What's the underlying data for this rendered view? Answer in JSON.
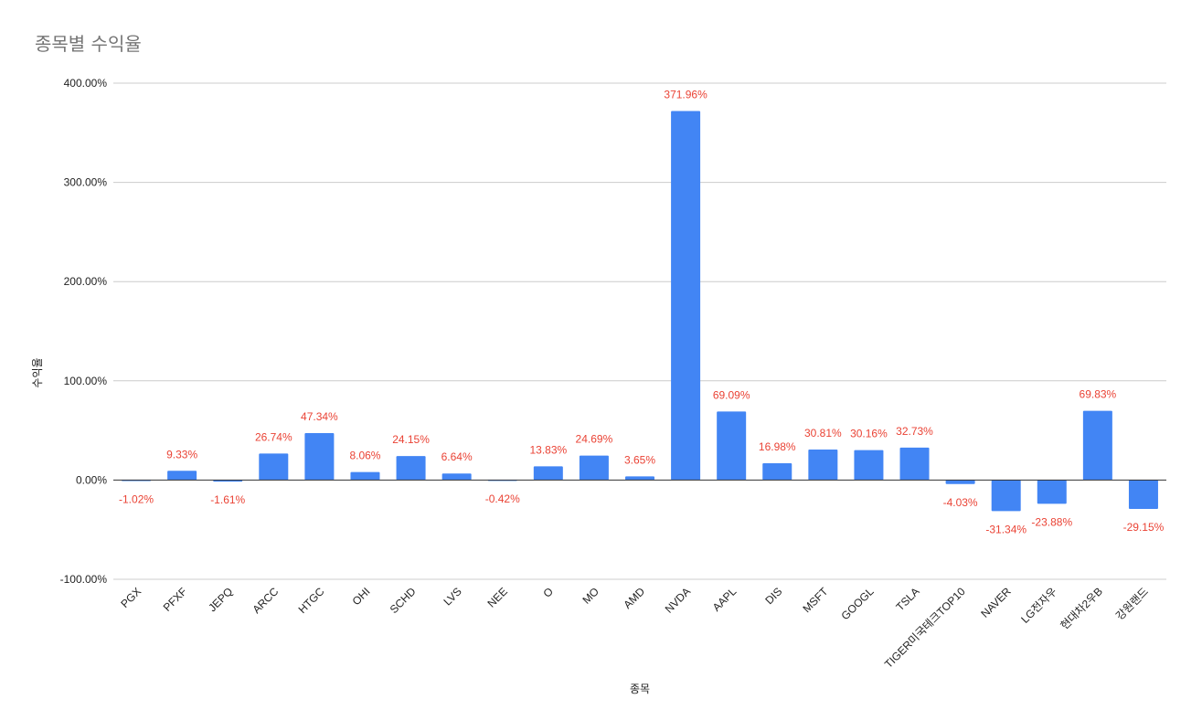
{
  "chart_data": {
    "type": "bar",
    "title": "종목별 수익율",
    "xlabel": "종목",
    "ylabel": "수익율",
    "ylim": [
      -100,
      400
    ],
    "yticks": [
      -100,
      0,
      100,
      200,
      300,
      400
    ],
    "ytick_labels": [
      "-100.00%",
      "0.00%",
      "100.00%",
      "200.00%",
      "300.00%",
      "400.00%"
    ],
    "grid": true,
    "legend": "none",
    "categories": [
      "PGX",
      "PFXF",
      "JEPQ",
      "ARCC",
      "HTGC",
      "OHI",
      "SCHD",
      "LVS",
      "NEE",
      "O",
      "MO",
      "AMD",
      "NVDA",
      "AAPL",
      "DIS",
      "MSFT",
      "GOOGL",
      "TSLA",
      "TIGER미국테크TOP10",
      "NAVER",
      "LG전자우",
      "현대차2우B",
      "강원랜드"
    ],
    "values": [
      -1.02,
      9.33,
      -1.61,
      26.74,
      47.34,
      8.06,
      24.15,
      6.64,
      -0.42,
      13.83,
      24.69,
      3.65,
      371.96,
      69.09,
      16.98,
      30.81,
      30.16,
      32.73,
      -4.03,
      -31.34,
      -23.88,
      69.83,
      -29.15
    ],
    "data_labels": [
      "-1.02%",
      "9.33%",
      "-1.61%",
      "26.74%",
      "47.34%",
      "8.06%",
      "24.15%",
      "6.64%",
      "-0.42%",
      "13.83%",
      "24.69%",
      "3.65%",
      "371.96%",
      "69.09%",
      "16.98%",
      "30.81%",
      "30.16%",
      "32.73%",
      "-4.03%",
      "-31.34%",
      "-23.88%",
      "69.83%",
      "-29.15%"
    ],
    "colors": {
      "bar": "#4285f4",
      "label": "#ea4335",
      "grid": "#cccccc",
      "zero_line": "#333333",
      "title": "#757575"
    }
  }
}
